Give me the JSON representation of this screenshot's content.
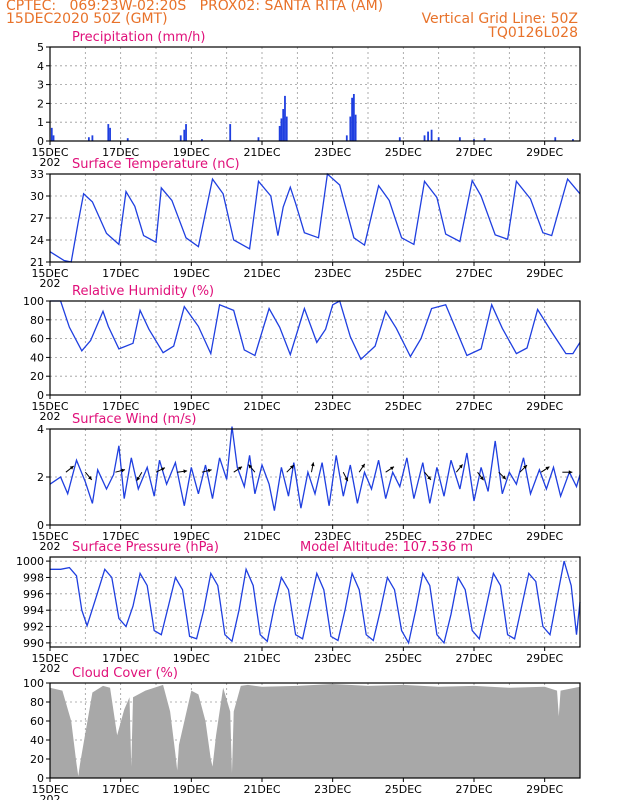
{
  "header": {
    "line1_left": "CPTEC:   069:23W-02:20S   PROX02: SANTA RITA (AM)",
    "line2_left": "15DEC2020 50Z (GMT)",
    "line2_right": "Vertical Grid Line: 50Z",
    "line3_right": "TQ0126L028"
  },
  "x_axis": {
    "ticks": [
      "15DEC",
      "17DEC",
      "19DEC",
      "21DEC",
      "23DEC",
      "25DEC",
      "27DEC",
      "29DEC"
    ],
    "year_stub": "202",
    "range_days": [
      0,
      15
    ]
  },
  "colors": {
    "line": "#1f3fe0",
    "bar": "#1f3fe0",
    "cloud": "#a8a8a8",
    "title": "#e0107a",
    "header": "#e8722a"
  },
  "chart_data": [
    {
      "type": "bar",
      "title": "Precipitation (mm/h)",
      "ylim": [
        0,
        5
      ],
      "yticks": [
        "0",
        "1",
        "2",
        "3",
        "4",
        "5"
      ],
      "grid": true,
      "bars": [
        [
          0.05,
          0.7
        ],
        [
          0.1,
          0.3
        ],
        [
          1.1,
          0.2
        ],
        [
          1.2,
          0.3
        ],
        [
          1.65,
          0.9
        ],
        [
          1.7,
          0.7
        ],
        [
          2.2,
          0.15
        ],
        [
          3.7,
          0.3
        ],
        [
          3.8,
          0.6
        ],
        [
          3.85,
          0.9
        ],
        [
          4.3,
          0.1
        ],
        [
          5.1,
          0.9
        ],
        [
          5.9,
          0.2
        ],
        [
          6.5,
          0.8
        ],
        [
          6.55,
          1.2
        ],
        [
          6.6,
          1.7
        ],
        [
          6.65,
          2.4
        ],
        [
          6.7,
          1.3
        ],
        [
          8.4,
          0.3
        ],
        [
          8.5,
          1.3
        ],
        [
          8.55,
          2.3
        ],
        [
          8.6,
          2.5
        ],
        [
          8.65,
          1.4
        ],
        [
          9.9,
          0.2
        ],
        [
          10.6,
          0.3
        ],
        [
          10.7,
          0.5
        ],
        [
          10.8,
          0.6
        ],
        [
          11.0,
          0.2
        ],
        [
          11.6,
          0.2
        ],
        [
          12.0,
          0.1
        ],
        [
          12.3,
          0.15
        ],
        [
          14.3,
          0.2
        ],
        [
          14.8,
          0.1
        ]
      ]
    },
    {
      "type": "line",
      "title": "Surface Temperature (nC)",
      "ylim": [
        21,
        33
      ],
      "yticks": [
        "21",
        "24",
        "27",
        "30",
        "33"
      ],
      "grid": true,
      "x": [
        0,
        0.4,
        0.6,
        0.8,
        0.95,
        1.2,
        1.6,
        1.95,
        2.15,
        2.4,
        2.65,
        3.0,
        3.15,
        3.45,
        3.85,
        4.2,
        4.6,
        4.9,
        5.2,
        5.65,
        5.9,
        6.25,
        6.45,
        6.6,
        6.8,
        6.95,
        7.2,
        7.6,
        7.85,
        8.2,
        8.6,
        8.9,
        9.3,
        9.6,
        9.95,
        10.3,
        10.6,
        10.95,
        11.2,
        11.6,
        11.95,
        12.2,
        12.6,
        12.95,
        13.2,
        13.6,
        13.95,
        14.2,
        14.65,
        15.0
      ],
      "y": [
        22.4,
        21.2,
        21.0,
        26.5,
        30.3,
        29.2,
        24.9,
        23.4,
        30.6,
        28.6,
        24.6,
        23.7,
        31.1,
        29.4,
        24.3,
        23.1,
        32.3,
        30.3,
        24.0,
        22.8,
        32.0,
        30.0,
        24.6,
        28.5,
        31.2,
        29.0,
        25.0,
        24.3,
        33.0,
        31.5,
        24.3,
        23.3,
        31.4,
        29.4,
        24.3,
        23.4,
        32.0,
        29.8,
        24.8,
        23.8,
        32.1,
        30.0,
        24.7,
        24.1,
        32.0,
        29.6,
        25.0,
        24.6,
        32.3,
        30.3
      ]
    },
    {
      "type": "line",
      "title": "Relative Humidity (%)",
      "ylim": [
        0,
        100
      ],
      "yticks": [
        "0",
        "20",
        "40",
        "60",
        "80",
        "100"
      ],
      "grid": true,
      "x": [
        0,
        0.3,
        0.55,
        0.9,
        1.15,
        1.5,
        1.65,
        1.95,
        2.35,
        2.55,
        2.8,
        3.2,
        3.5,
        3.8,
        4.2,
        4.55,
        4.8,
        5.2,
        5.5,
        5.8,
        6.2,
        6.5,
        6.8,
        7.2,
        7.55,
        7.8,
        8.0,
        8.2,
        8.5,
        8.8,
        9.2,
        9.5,
        9.8,
        10.2,
        10.5,
        10.8,
        11.2,
        11.5,
        11.8,
        12.2,
        12.5,
        12.8,
        13.2,
        13.5,
        13.8,
        14.2,
        14.6,
        14.8,
        15.0
      ],
      "y": [
        100,
        100,
        72,
        47,
        58,
        89,
        73,
        49,
        55,
        90,
        70,
        45,
        52,
        94,
        73,
        44,
        96,
        90,
        48,
        42,
        92,
        72,
        43,
        92,
        56,
        70,
        96,
        100,
        62,
        38,
        52,
        89,
        71,
        41,
        60,
        92,
        96,
        69,
        42,
        49,
        96,
        71,
        44,
        50,
        91,
        67,
        44,
        44,
        56
      ]
    },
    {
      "type": "line",
      "title": "Surface Wind (m/s)",
      "ylim": [
        0,
        4
      ],
      "yticks": [
        "0",
        "2",
        "4"
      ],
      "grid": true,
      "x": [
        0,
        0.3,
        0.5,
        0.75,
        1.0,
        1.2,
        1.35,
        1.6,
        1.8,
        1.95,
        2.1,
        2.3,
        2.5,
        2.75,
        2.95,
        3.1,
        3.3,
        3.55,
        3.8,
        4.0,
        4.2,
        4.4,
        4.6,
        4.8,
        5.0,
        5.15,
        5.3,
        5.5,
        5.65,
        5.8,
        6.0,
        6.2,
        6.35,
        6.55,
        6.75,
        6.9,
        7.1,
        7.3,
        7.5,
        7.7,
        7.9,
        8.1,
        8.3,
        8.5,
        8.7,
        8.9,
        9.1,
        9.3,
        9.5,
        9.7,
        9.9,
        10.1,
        10.3,
        10.55,
        10.75,
        10.95,
        11.15,
        11.35,
        11.6,
        11.8,
        12.0,
        12.2,
        12.4,
        12.6,
        12.8,
        13.0,
        13.2,
        13.4,
        13.6,
        13.85,
        14.05,
        14.25,
        14.45,
        14.7,
        14.9,
        15.0
      ],
      "y": [
        1.7,
        2.0,
        1.3,
        2.7,
        1.8,
        0.9,
        2.3,
        1.5,
        2.1,
        3.3,
        1.1,
        2.8,
        1.5,
        2.4,
        1.2,
        2.7,
        1.7,
        2.6,
        0.8,
        2.4,
        1.3,
        2.5,
        1.1,
        2.8,
        1.9,
        4.1,
        2.4,
        1.6,
        2.9,
        1.3,
        2.5,
        1.7,
        0.6,
        2.4,
        1.2,
        2.6,
        0.7,
        2.2,
        1.3,
        2.6,
        0.8,
        2.9,
        1.2,
        2.5,
        0.9,
        2.2,
        1.5,
        2.7,
        1.1,
        2.2,
        1.6,
        2.8,
        1.1,
        2.6,
        0.9,
        2.4,
        1.2,
        2.7,
        1.5,
        3.0,
        1.0,
        2.4,
        1.4,
        3.5,
        1.3,
        2.2,
        1.7,
        2.8,
        1.3,
        2.3,
        1.5,
        2.4,
        1.2,
        2.2,
        1.6,
        2.1
      ],
      "arrows": [
        [
          0.45,
          1.0,
          0.8
        ],
        [
          1.0,
          1.0,
          -1.2
        ],
        [
          1.85,
          1.5,
          0.4
        ],
        [
          2.6,
          -0.6,
          -1.0
        ],
        [
          3.0,
          1.0,
          0.5
        ],
        [
          3.6,
          2.2,
          0.3
        ],
        [
          4.3,
          1.2,
          0.3
        ],
        [
          5.2,
          1.5,
          1.0
        ],
        [
          5.8,
          -0.5,
          0.6
        ],
        [
          6.7,
          0.3,
          0.3
        ],
        [
          7.4,
          0.1,
          0.5
        ],
        [
          8.3,
          0.3,
          -0.6
        ],
        [
          8.75,
          0.8,
          1.2
        ],
        [
          9.5,
          1.5,
          1.0
        ],
        [
          10.6,
          0.5,
          -0.6
        ],
        [
          11.5,
          0.4,
          0.5
        ],
        [
          12.1,
          0.6,
          -0.8
        ],
        [
          12.7,
          0.5,
          -0.5
        ],
        [
          13.3,
          0.6,
          0.6
        ],
        [
          13.9,
          0.3,
          0.2
        ],
        [
          14.5,
          0.5,
          0.0
        ]
      ]
    },
    {
      "type": "line",
      "title": "Surface Pressure (hPa)",
      "subtitle": "Model Altitude: 107.536  m",
      "ylim": [
        989.5,
        1000.5
      ],
      "yticks": [
        "990",
        "992",
        "994",
        "996",
        "998",
        "1000"
      ],
      "grid": true,
      "x": [
        0,
        0.3,
        0.55,
        0.75,
        0.9,
        1.05,
        1.3,
        1.55,
        1.75,
        1.95,
        2.15,
        2.35,
        2.55,
        2.75,
        2.95,
        3.15,
        3.35,
        3.55,
        3.75,
        3.95,
        4.15,
        4.35,
        4.55,
        4.75,
        4.95,
        5.15,
        5.35,
        5.55,
        5.75,
        5.95,
        6.15,
        6.35,
        6.55,
        6.75,
        6.95,
        7.15,
        7.35,
        7.55,
        7.75,
        7.95,
        8.15,
        8.35,
        8.55,
        8.75,
        8.95,
        9.15,
        9.35,
        9.55,
        9.75,
        9.95,
        10.15,
        10.35,
        10.55,
        10.75,
        10.95,
        11.15,
        11.35,
        11.55,
        11.75,
        11.95,
        12.15,
        12.35,
        12.55,
        12.75,
        12.95,
        13.15,
        13.35,
        13.55,
        13.75,
        13.95,
        14.15,
        14.35,
        14.55,
        14.75,
        14.9,
        15.0
      ],
      "y": [
        999.0,
        999.0,
        999.2,
        998.2,
        994.0,
        992.1,
        995.5,
        999.0,
        998.0,
        993.0,
        992.0,
        994.5,
        998.5,
        997.0,
        991.5,
        991.0,
        994.5,
        998.0,
        996.5,
        990.8,
        990.5,
        994.0,
        998.5,
        997.0,
        991.0,
        990.2,
        994.0,
        999.0,
        997.0,
        991.0,
        990.2,
        994.5,
        998.0,
        996.5,
        991.0,
        990.5,
        994.5,
        998.5,
        996.5,
        990.8,
        990.3,
        994.0,
        998.5,
        996.5,
        991.0,
        990.3,
        994.0,
        998.0,
        996.5,
        991.5,
        990.0,
        994.0,
        998.5,
        997.0,
        991.0,
        990.0,
        993.5,
        998.0,
        996.5,
        991.5,
        990.5,
        994.5,
        998.5,
        997.0,
        991.0,
        990.5,
        994.5,
        998.5,
        997.5,
        992.0,
        991.0,
        995.5,
        1000.0,
        997.0,
        991.0,
        995.0
      ]
    },
    {
      "type": "area",
      "title": "Cloud Cover (%)",
      "ylim": [
        0,
        100
      ],
      "yticks": [
        "0",
        "20",
        "40",
        "60",
        "80",
        "100"
      ],
      "grid": true,
      "x": [
        0,
        0.35,
        0.6,
        0.75,
        0.8,
        0.85,
        1.2,
        1.5,
        1.7,
        1.9,
        2.1,
        2.25,
        2.3,
        2.35,
        2.7,
        3.2,
        3.4,
        3.55,
        3.6,
        3.65,
        4.0,
        4.2,
        4.4,
        4.55,
        4.6,
        4.7,
        4.9,
        5.1,
        5.15,
        5.2,
        5.4,
        5.6,
        6.0,
        7.0,
        8.0,
        9.0,
        10.0,
        11.0,
        12.0,
        13.0,
        14.0,
        14.35,
        14.4,
        14.45,
        15.0
      ],
      "y": [
        95,
        92,
        60,
        15,
        2,
        15,
        90,
        97,
        95,
        45,
        72,
        85,
        12,
        85,
        92,
        98,
        70,
        25,
        8,
        35,
        92,
        88,
        60,
        20,
        12,
        45,
        95,
        70,
        5,
        70,
        97,
        98,
        96,
        97,
        99,
        97,
        98,
        96,
        97,
        95,
        96,
        92,
        65,
        92,
        96
      ]
    }
  ]
}
